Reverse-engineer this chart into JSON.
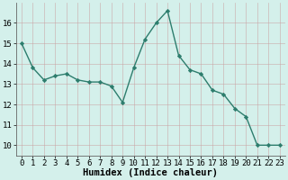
{
  "x": [
    0,
    1,
    2,
    3,
    4,
    5,
    6,
    7,
    8,
    9,
    10,
    11,
    12,
    13,
    14,
    15,
    16,
    17,
    18,
    19,
    20,
    21,
    22,
    23
  ],
  "y": [
    15.0,
    13.8,
    13.2,
    13.4,
    13.5,
    13.2,
    13.1,
    13.1,
    12.9,
    12.1,
    13.8,
    15.2,
    16.0,
    16.6,
    14.4,
    13.7,
    13.5,
    12.7,
    12.5,
    11.8,
    11.4,
    10.0,
    10.0,
    10.0
  ],
  "xlabel": "Humidex (Indice chaleur)",
  "ylim": [
    9.5,
    17.0
  ],
  "xlim": [
    -0.5,
    23.5
  ],
  "yticks": [
    10,
    11,
    12,
    13,
    14,
    15,
    16
  ],
  "xticks": [
    0,
    1,
    2,
    3,
    4,
    5,
    6,
    7,
    8,
    9,
    10,
    11,
    12,
    13,
    14,
    15,
    16,
    17,
    18,
    19,
    20,
    21,
    22,
    23
  ],
  "line_color": "#2d7d6d",
  "marker_color": "#2d7d6d",
  "bg_color": "#d4f0eb",
  "grid_color_major": "#c0ddd8",
  "grid_color_minor": "#e0f5f0",
  "xlabel_fontsize": 7.5,
  "tick_fontsize": 6.5
}
